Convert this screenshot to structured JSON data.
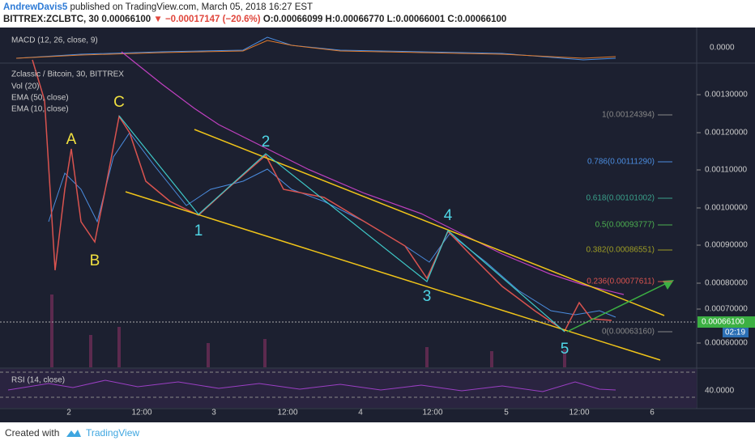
{
  "header": {
    "author": "AndrewDavis5",
    "published": "published on TradingView.com, March 05, 2018 16:27 EST",
    "symbol": "BITTREX:ZCLBTC, 30",
    "last": "0.00066100",
    "change": "▼ −0.00017147 (−20.6%)",
    "ohlc": "O:0.00066099 H:0.00066770 L:0.00066001 C:0.00066100"
  },
  "panes": {
    "macd": "MACD (12, 26, close, 9)",
    "main": "Zclassic / Bitcoin, 30, BITTREX",
    "vol": "Vol (20)",
    "ema50": "EMA (50, close)",
    "ema10": "EMA (10, close)",
    "rsi": "RSI (14, close)"
  },
  "price_axis": [
    "0.00130000",
    "0.00120000",
    "0.00110000",
    "0.00100000",
    "0.00090000",
    "0.00080000",
    "0.00070000",
    "0.00060000"
  ],
  "macd_axis": "0.0000",
  "rsi_axis": "40.0000",
  "price_tag": "0.00066100",
  "countdown": "02:19",
  "time_axis": [
    "2",
    "12:00",
    "3",
    "12:00",
    "4",
    "12:00",
    "5",
    "12:00",
    "6"
  ],
  "fib_levels": [
    "1(0.00124394)",
    "0.786(0.00111290)",
    "0.618(0.00101002)",
    "0.5(0.00093777)",
    "0.382(0.00086551)",
    "0.236(0.00077611)",
    "0(0.00063160)"
  ],
  "waves": [
    "A",
    "B",
    "C",
    "1",
    "2",
    "3",
    "4",
    "5"
  ],
  "footer": {
    "created": "Created with",
    "brand": "TradingView"
  }
}
